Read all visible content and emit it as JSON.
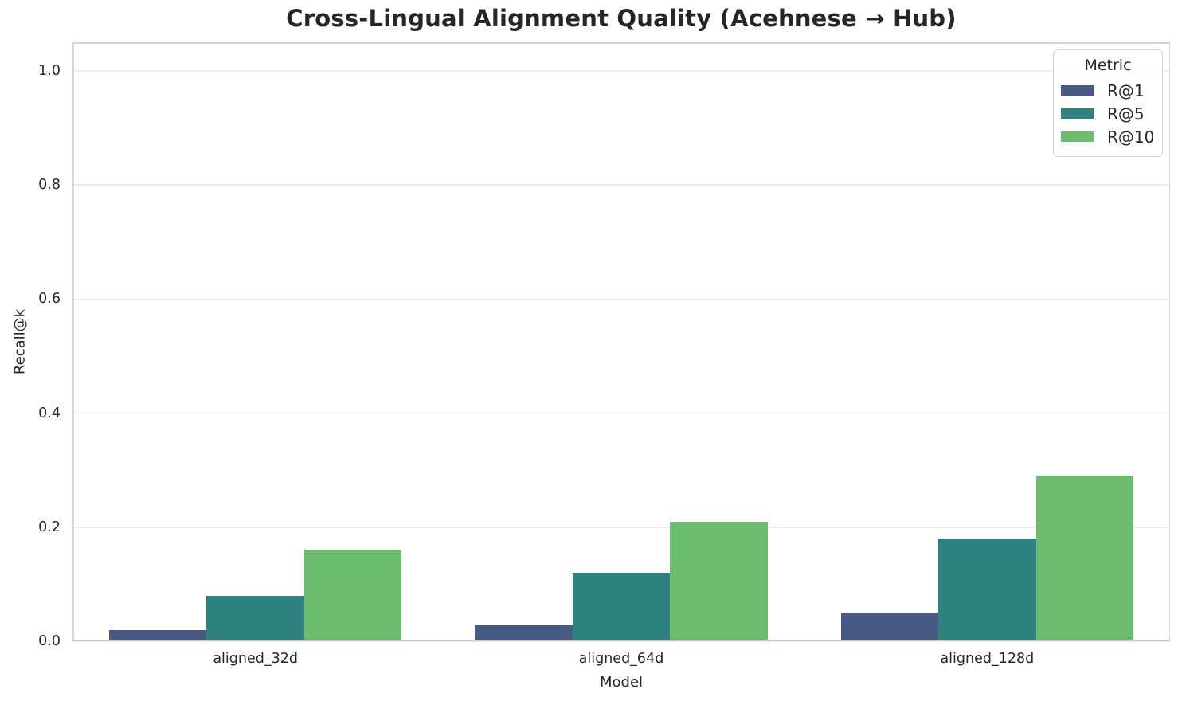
{
  "title": "Cross-Lingual Alignment Quality (Acehnese → Hub)",
  "chart_data": {
    "type": "bar",
    "title": "Cross-Lingual Alignment Quality (Acehnese → Hub)",
    "xlabel": "Model",
    "ylabel": "Recall@k",
    "categories": [
      "aligned_32d",
      "aligned_64d",
      "aligned_128d"
    ],
    "series": [
      {
        "name": "R@1",
        "color": "#475a84",
        "values": [
          0.02,
          0.03,
          0.05
        ]
      },
      {
        "name": "R@5",
        "color": "#2e8381",
        "values": [
          0.08,
          0.12,
          0.18
        ]
      },
      {
        "name": "R@10",
        "color": "#6cbc6e",
        "values": [
          0.16,
          0.21,
          0.29
        ]
      }
    ],
    "ylim": [
      0,
      1.05
    ],
    "yticks": [
      0.0,
      0.2,
      0.4,
      0.6,
      0.8,
      1.0
    ],
    "ytick_labels": [
      "0.0",
      "0.2",
      "0.4",
      "0.6",
      "0.8",
      "1.0"
    ],
    "grid": "horizontal",
    "grid_on": true,
    "bar_group_width_fraction": 0.8,
    "legend": {
      "title": "Metric",
      "position": "upper right",
      "entries": [
        "R@1",
        "R@5",
        "R@10"
      ]
    }
  }
}
